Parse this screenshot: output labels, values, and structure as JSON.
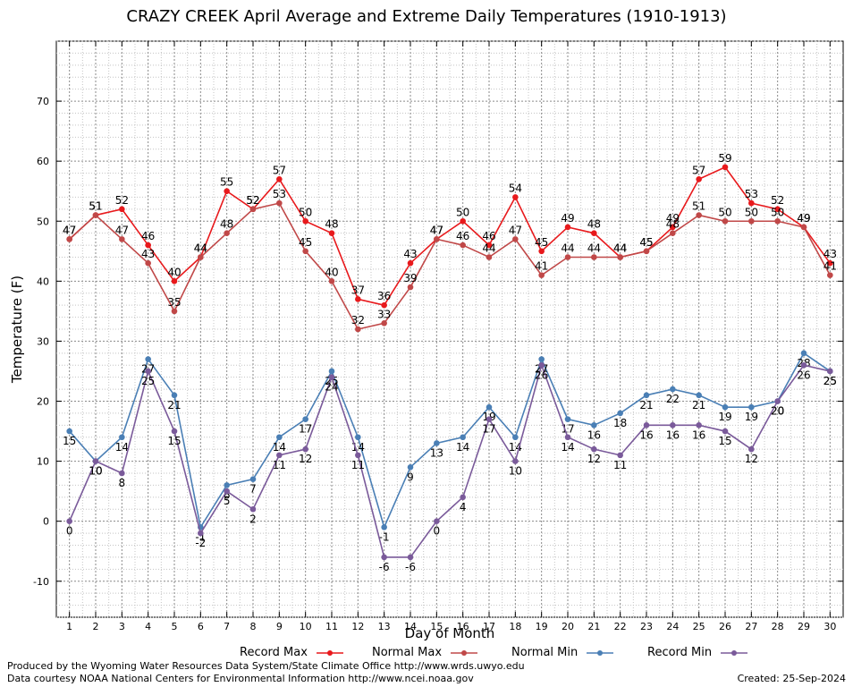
{
  "chart_data": {
    "type": "line",
    "title": "CRAZY CREEK April Average and Extreme Daily Temperatures (1910-1913)",
    "xlabel": "Day of Month",
    "ylabel": "Temperature (F)",
    "xlim": [
      0.5,
      30.5
    ],
    "ylim": [
      -16,
      80
    ],
    "y_ticks": [
      -10,
      0,
      10,
      20,
      30,
      40,
      50,
      60,
      70
    ],
    "x_ticks": [
      1,
      2,
      3,
      4,
      5,
      6,
      7,
      8,
      9,
      10,
      11,
      12,
      13,
      14,
      15,
      16,
      17,
      18,
      19,
      20,
      21,
      22,
      23,
      24,
      25,
      26,
      27,
      28,
      29,
      30
    ],
    "grid": true,
    "legend_position": "bottom",
    "x": [
      1,
      2,
      3,
      4,
      5,
      6,
      7,
      8,
      9,
      10,
      11,
      12,
      13,
      14,
      15,
      16,
      17,
      18,
      19,
      20,
      21,
      22,
      23,
      24,
      25,
      26,
      27,
      28,
      29,
      30
    ],
    "series": [
      {
        "name": "Record Max",
        "color": "#e8191c",
        "label_pos": "above",
        "values": [
          47,
          51,
          52,
          46,
          40,
          44,
          55,
          52,
          57,
          50,
          48,
          37,
          36,
          43,
          47,
          50,
          46,
          54,
          45,
          49,
          48,
          44,
          45,
          49,
          57,
          59,
          53,
          52,
          49,
          43
        ]
      },
      {
        "name": "Normal Max",
        "color": "#c04848",
        "label_pos": "above",
        "values": [
          47,
          51,
          47,
          43,
          35,
          44,
          48,
          52,
          53,
          45,
          40,
          32,
          33,
          39,
          47,
          46,
          44,
          47,
          41,
          44,
          44,
          44,
          45,
          48,
          51,
          50,
          50,
          50,
          49,
          41
        ]
      },
      {
        "name": "Normal Min",
        "color": "#4a7fb5",
        "label_pos": "below",
        "values": [
          15,
          10,
          14,
          27,
          21,
          -1,
          6,
          7,
          14,
          17,
          25,
          14,
          -1,
          9,
          13,
          14,
          19,
          14,
          27,
          17,
          16,
          18,
          21,
          22,
          21,
          19,
          19,
          20,
          28,
          25
        ]
      },
      {
        "name": "Record Min",
        "color": "#7a5a9a",
        "label_pos": "below",
        "values": [
          0,
          10,
          8,
          25,
          15,
          -2,
          5,
          2,
          11,
          12,
          24,
          11,
          -6,
          -6,
          0,
          4,
          17,
          10,
          26,
          14,
          12,
          11,
          16,
          16,
          16,
          15,
          12,
          20,
          26,
          25
        ]
      }
    ]
  },
  "footer": {
    "credit_line1": "Produced by the Wyoming Water Resources Data System/State Climate Office http://www.wrds.uwyo.edu",
    "credit_line2": "Data courtesy NOAA National Centers for Environmental Information http://www.ncei.noaa.gov",
    "created": "Created:  25-Sep-2024"
  }
}
